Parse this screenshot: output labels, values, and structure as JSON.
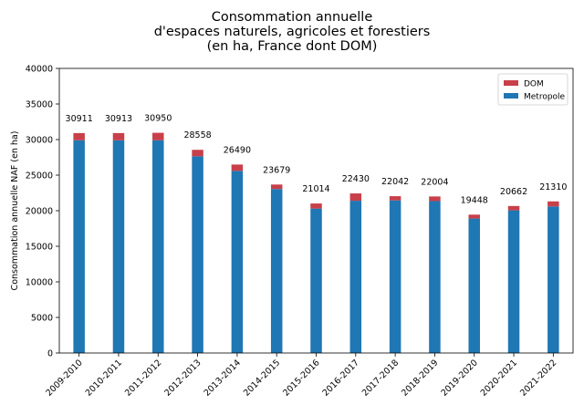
{
  "chart_data": {
    "type": "bar",
    "stacked": true,
    "title_lines": [
      "Consommation annuelle",
      "d'espaces naturels, agricoles et forestiers",
      "(en ha, France dont DOM)"
    ],
    "xlabel": "",
    "ylabel": "Consommation annuelle NAF (en ha)",
    "ylim": [
      0,
      40000
    ],
    "yticks": [
      0,
      5000,
      10000,
      15000,
      20000,
      25000,
      30000,
      35000,
      40000
    ],
    "grid": false,
    "legend_position": "top-right",
    "categories": [
      "2009-2010",
      "2010-2011",
      "2011-2012",
      "2012-2013",
      "2013-2014",
      "2014-2015",
      "2015-2016",
      "2016-2017",
      "2017-2018",
      "2018-2019",
      "2019-2020",
      "2020-2021",
      "2021-2022"
    ],
    "series": [
      {
        "name": "Metropole",
        "color": "#1f77b4",
        "values": [
          29900,
          29900,
          29900,
          27650,
          25600,
          23050,
          20300,
          21400,
          21450,
          21350,
          18900,
          20050,
          20600
        ]
      },
      {
        "name": "DOM",
        "color": "#c8404a",
        "values": [
          1011,
          1013,
          1050,
          908,
          890,
          629,
          714,
          1030,
          592,
          654,
          548,
          612,
          710
        ]
      }
    ],
    "totals": [
      30911,
      30913,
      30950,
      28558,
      26490,
      23679,
      21014,
      22430,
      22042,
      22004,
      19448,
      20662,
      21310
    ]
  }
}
